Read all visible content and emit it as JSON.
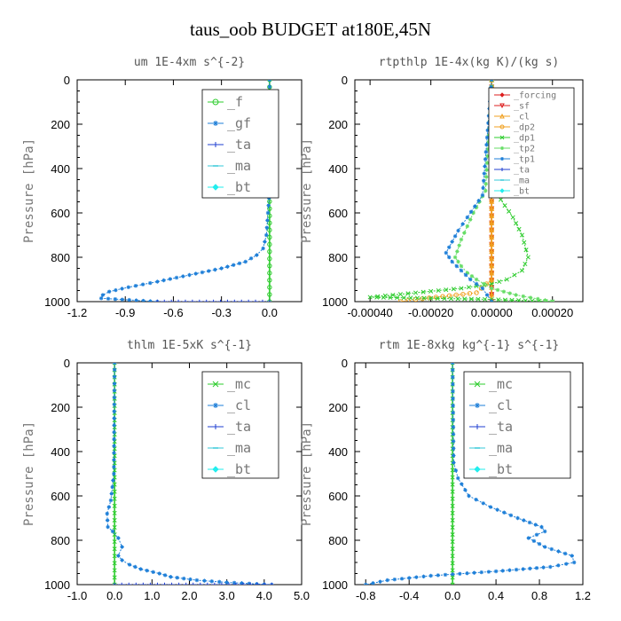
{
  "suptitle": "taus_oob  BUDGET at180E,45N",
  "colors": {
    "frame": "#000000",
    "green": "#2ecc2e",
    "light_green": "#66dd66",
    "blue": "#1e7fd8",
    "dark_blue": "#1f3fd0",
    "cyan": "#35c8d8",
    "red": "#dd1f1f",
    "orange": "#f0a020",
    "aqua": "#22eeee"
  },
  "chart_data": [
    {
      "type": "line",
      "title": "um  1E-4xm s^{-2}",
      "ylabel": "Pressure [hPa]",
      "xlim": [
        -1.2,
        0.2
      ],
      "xticks": [
        -1.2,
        -0.9,
        -0.6,
        -0.3,
        0.0
      ],
      "xtick_labels": [
        "-1.2",
        "-0.9",
        "-0.6",
        "-0.3",
        "0.0"
      ],
      "ylim": [
        1000,
        0
      ],
      "yticks": [
        0,
        200,
        400,
        600,
        800,
        1000
      ],
      "legend_position": "top-right",
      "series": [
        {
          "name": "_f",
          "color": "#2ecc2e",
          "marker": "circle",
          "x": [
            0.0,
            0.0
          ],
          "y": [
            0,
            1000
          ]
        },
        {
          "name": "_gf",
          "color": "#1e7fd8",
          "marker": "star",
          "x": [
            0.0,
            0.0,
            -0.01,
            -0.02,
            -0.04,
            -0.08,
            -0.15,
            -0.3,
            -0.5,
            -0.7,
            -0.88,
            -1.0,
            -1.04,
            -1.05,
            -0.7
          ],
          "y": [
            0,
            500,
            600,
            700,
            760,
            790,
            820,
            850,
            880,
            910,
            935,
            955,
            970,
            985,
            1000
          ]
        },
        {
          "name": "_ta",
          "color": "#1f3fd0",
          "marker": "plus",
          "x": [
            -0.7,
            0.0
          ],
          "y": [
            1000,
            1000
          ]
        },
        {
          "name": "_ma",
          "color": "#35c8d8",
          "marker": "dash",
          "x": [],
          "y": []
        },
        {
          "name": "_bt",
          "color": "#22eeee",
          "marker": "diamond",
          "x": [],
          "y": []
        }
      ]
    },
    {
      "type": "line",
      "title": "rtpthlp  1E-4x(kg K)/(kg s)",
      "ylabel": "Pressure [hPa]",
      "xlim": [
        -0.00045,
        0.0003
      ],
      "xticks": [
        -0.0004,
        -0.0002,
        0.0,
        0.0002
      ],
      "xtick_labels": [
        "-0.00040",
        "-0.00020",
        "0.00000",
        "0.00020"
      ],
      "ylim": [
        1000,
        0
      ],
      "yticks": [
        0,
        200,
        400,
        600,
        800,
        1000
      ],
      "legend_position": "top-right",
      "series": [
        {
          "name": "_forcing",
          "color": "#dd1f1f",
          "marker": "diamond",
          "x": [
            0.0,
            0.0
          ],
          "y": [
            0,
            1000
          ]
        },
        {
          "name": "_sf",
          "color": "#dd1f1f",
          "marker": "triangle-down",
          "x": [
            0.0,
            0.0
          ],
          "y": [
            0,
            1000
          ]
        },
        {
          "name": "_cl",
          "color": "#f0a020",
          "marker": "triangle",
          "x": [
            0.0,
            0.0
          ],
          "y": [
            0,
            1000
          ]
        },
        {
          "name": "_dp2",
          "color": "#f0a020",
          "marker": "circle",
          "x": [
            0.0,
            0.0,
            -5e-05,
            -0.00025,
            -0.0003
          ],
          "y": [
            0,
            900,
            960,
            990,
            1000
          ]
        },
        {
          "name": "_dp1",
          "color": "#2ecc2e",
          "marker": "cross",
          "x": [
            0.0,
            0.0,
            3e-05,
            7e-05,
            0.0001,
            0.00012,
            0.0001,
            5e-05,
            0.0,
            -0.0001,
            -0.00025,
            -0.0004,
            -0.0002,
            0.0,
            0.0002
          ],
          "y": [
            0,
            480,
            540,
            620,
            700,
            800,
            860,
            900,
            920,
            940,
            960,
            980,
            985,
            990,
            1000
          ]
        },
        {
          "name": "_tp2",
          "color": "#66dd66",
          "marker": "star",
          "x": [
            0.0,
            -2e-05,
            -6e-05,
            -8e-05,
            -0.0001,
            -0.00012,
            -0.0001,
            -8e-05,
            -5e-05,
            0.0,
            8e-05,
            0.0002
          ],
          "y": [
            0,
            500,
            600,
            660,
            720,
            800,
            840,
            870,
            900,
            940,
            970,
            1000
          ]
        },
        {
          "name": "_tp1",
          "color": "#1e7fd8",
          "marker": "star",
          "x": [
            0.0,
            -3e-05,
            -8e-05,
            -0.00011,
            -0.00013,
            -0.00015,
            -0.00013,
            -0.0001,
            -7e-05,
            -3e-05,
            0.0
          ],
          "y": [
            0,
            520,
            620,
            680,
            730,
            780,
            820,
            860,
            900,
            940,
            1000
          ]
        },
        {
          "name": "_ta",
          "color": "#1f3fd0",
          "marker": "plus",
          "x": [],
          "y": []
        },
        {
          "name": "_ma",
          "color": "#35c8d8",
          "marker": "dash",
          "x": [],
          "y": []
        },
        {
          "name": "_bt",
          "color": "#22eeee",
          "marker": "diamond",
          "x": [],
          "y": []
        }
      ]
    },
    {
      "type": "line",
      "title": "thlm  1E-5xK s^{-1}",
      "ylabel": "Pressure [hPa]",
      "xlim": [
        -1.0,
        5.0
      ],
      "xticks": [
        -1.0,
        0.0,
        1.0,
        2.0,
        3.0,
        4.0,
        5.0
      ],
      "xtick_labels": [
        "-1.0",
        "0.0",
        "1.0",
        "2.0",
        "3.0",
        "4.0",
        "5.0"
      ],
      "ylim": [
        1000,
        0
      ],
      "yticks": [
        0,
        200,
        400,
        600,
        800,
        1000
      ],
      "legend_position": "top-right",
      "series": [
        {
          "name": "_mc",
          "color": "#2ecc2e",
          "marker": "cross",
          "x": [
            0.0,
            0.0
          ],
          "y": [
            0,
            1000
          ]
        },
        {
          "name": "_cl",
          "color": "#1e7fd8",
          "marker": "star",
          "x": [
            0.0,
            -0.02,
            -0.1,
            -0.2,
            -0.18,
            -0.05,
            0.1,
            0.2,
            0.1,
            0.2,
            0.4,
            0.7,
            1.2,
            1.5,
            2.2,
            3.0,
            3.8,
            4.2
          ],
          "y": [
            0,
            500,
            620,
            680,
            740,
            760,
            790,
            830,
            870,
            890,
            910,
            930,
            950,
            965,
            980,
            990,
            997,
            1000
          ]
        },
        {
          "name": "_ta",
          "color": "#1f3fd0",
          "marker": "plus",
          "x": [
            0.0,
            4.2
          ],
          "y": [
            1000,
            1000
          ]
        },
        {
          "name": "_ma",
          "color": "#35c8d8",
          "marker": "dash",
          "x": [],
          "y": []
        },
        {
          "name": "_bt",
          "color": "#22eeee",
          "marker": "diamond",
          "x": [],
          "y": []
        }
      ]
    },
    {
      "type": "line",
      "title": "rtm  1E-8xkg kg^{-1} s^{-1}",
      "ylabel": "Pressure [hPa]",
      "xlim": [
        -0.9,
        1.2
      ],
      "xticks": [
        -0.8,
        -0.4,
        0.0,
        0.4,
        0.8,
        1.2
      ],
      "xtick_labels": [
        "-0.8",
        "-0.4",
        "0.0",
        "0.4",
        "0.8",
        "1.2"
      ],
      "ylim": [
        1000,
        0
      ],
      "yticks": [
        0,
        200,
        400,
        600,
        800,
        1000
      ],
      "legend_position": "top-right",
      "series": [
        {
          "name": "_mc",
          "color": "#2ecc2e",
          "marker": "cross",
          "x": [
            0.0,
            0.0
          ],
          "y": [
            0,
            1000
          ]
        },
        {
          "name": "_cl",
          "color": "#1e7fd8",
          "marker": "star",
          "x": [
            0.0,
            0.01,
            0.05,
            0.15,
            0.35,
            0.6,
            0.82,
            0.85,
            0.7,
            0.85,
            1.1,
            1.12,
            0.9,
            0.4,
            -0.2,
            -0.6,
            -0.8
          ],
          "y": [
            0,
            450,
            520,
            600,
            650,
            700,
            740,
            760,
            790,
            830,
            870,
            900,
            920,
            940,
            960,
            980,
            1000
          ]
        },
        {
          "name": "_ta",
          "color": "#1f3fd0",
          "marker": "plus",
          "x": [],
          "y": []
        },
        {
          "name": "_ma",
          "color": "#35c8d8",
          "marker": "dash",
          "x": [],
          "y": []
        },
        {
          "name": "_bt",
          "color": "#22eeee",
          "marker": "diamond",
          "x": [],
          "y": []
        }
      ]
    }
  ]
}
